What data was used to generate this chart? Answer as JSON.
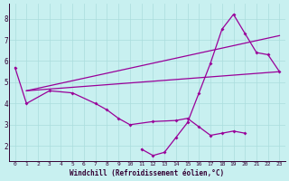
{
  "xlabel": "Windchill (Refroidissement éolien,°C)",
  "bg_color": "#c8f0f0",
  "line_color": "#990099",
  "grid_color": "#aadddd",
  "s1_x": [
    0,
    1,
    3,
    5,
    7,
    8,
    9,
    10,
    12,
    14,
    15,
    16,
    17,
    18,
    19,
    20
  ],
  "s1_y": [
    5.7,
    4.0,
    4.6,
    4.5,
    4.0,
    3.7,
    3.3,
    3.0,
    3.15,
    3.2,
    3.3,
    2.9,
    2.5,
    2.6,
    2.7,
    2.6
  ],
  "s2_x": [
    11,
    12,
    13,
    14,
    15,
    16,
    17,
    18,
    19,
    20,
    21,
    22,
    23
  ],
  "s2_y": [
    1.85,
    1.55,
    1.7,
    2.4,
    3.1,
    4.5,
    5.9,
    7.5,
    8.2,
    7.3,
    6.4,
    6.3,
    5.5
  ],
  "trend1_x": [
    1,
    23
  ],
  "trend1_y": [
    4.6,
    7.2
  ],
  "trend2_x": [
    1,
    23
  ],
  "trend2_y": [
    4.6,
    5.5
  ],
  "ylim": [
    1.3,
    8.7
  ],
  "xlim": [
    -0.5,
    23.5
  ],
  "yticks": [
    2,
    3,
    4,
    5,
    6,
    7,
    8
  ]
}
